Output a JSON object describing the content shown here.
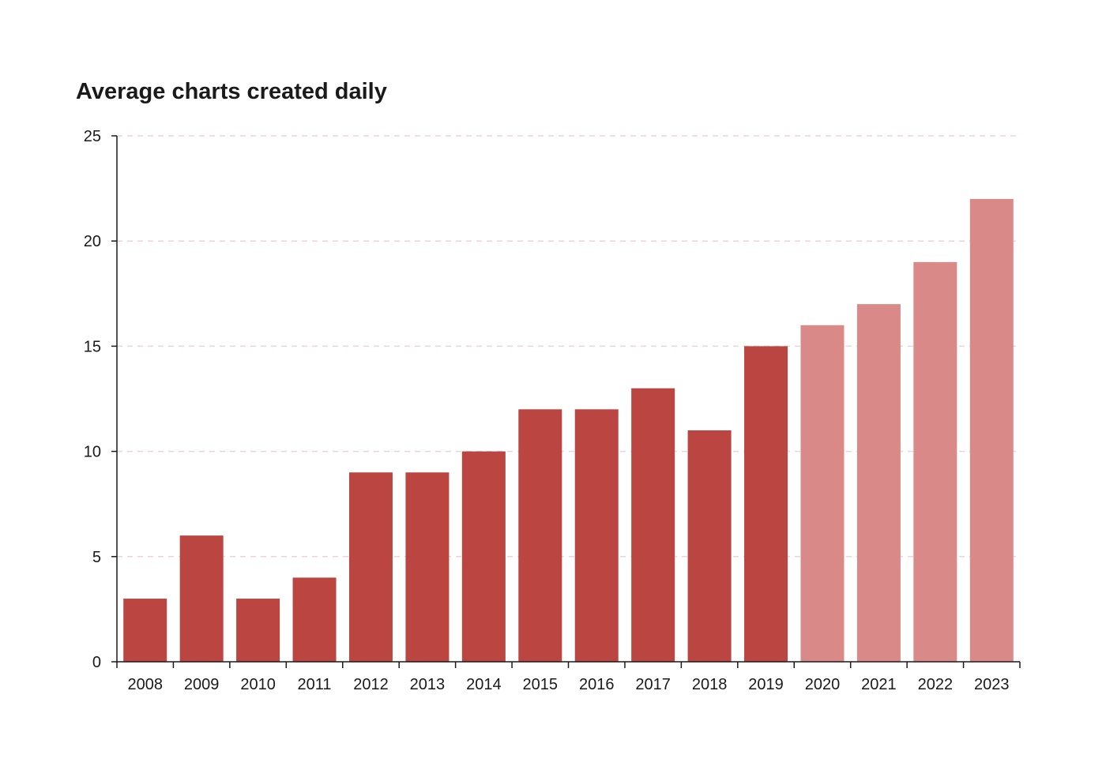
{
  "chart_data": {
    "type": "bar",
    "title": "Average charts created daily",
    "xlabel": "",
    "ylabel": "",
    "categories": [
      "2008",
      "2009",
      "2010",
      "2011",
      "2012",
      "2013",
      "2014",
      "2015",
      "2016",
      "2017",
      "2018",
      "2019",
      "2020",
      "2021",
      "2022",
      "2023"
    ],
    "values": [
      3,
      6,
      3,
      4,
      9,
      9,
      10,
      12,
      12,
      13,
      11,
      15,
      16,
      17,
      19,
      22
    ],
    "ylim": [
      0,
      25
    ],
    "yticks": [
      "0",
      "5",
      "10",
      "15",
      "20",
      "25"
    ],
    "grid": true,
    "grid_style": "dashed",
    "colors": {
      "bar_primary": "#bb4540",
      "bar_highlight": "#d98a88",
      "grid": "#ecd3d7",
      "axis": "#1a1a1a"
    },
    "bar_styles": [
      "primary",
      "primary",
      "primary",
      "primary",
      "primary",
      "primary",
      "primary",
      "primary",
      "primary",
      "primary",
      "primary",
      "primary",
      "highlight",
      "highlight",
      "highlight",
      "highlight"
    ]
  }
}
